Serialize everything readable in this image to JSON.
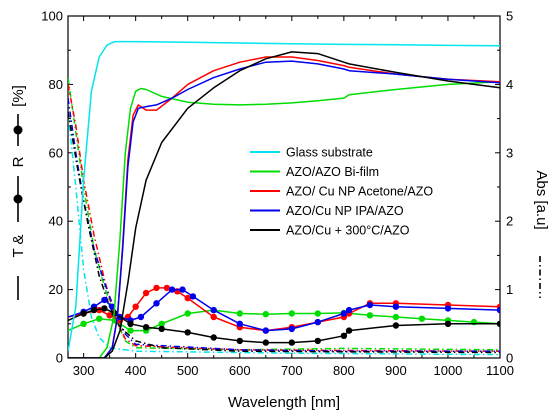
{
  "chart_data": {
    "type": "line",
    "xlabel": "Wavelength [nm]",
    "ylabel_left": "T & R [%]",
    "ylabel_left_parts": [
      "T &",
      "R",
      "[%]"
    ],
    "ylabel_right": "Abs [a.u]",
    "xlim": [
      270,
      1100
    ],
    "ylim_left": [
      0,
      100
    ],
    "ylim_right": [
      0,
      5
    ],
    "x_ticks": [
      300,
      400,
      500,
      600,
      700,
      800,
      900,
      1000,
      1100
    ],
    "y_left_ticks": [
      0,
      20,
      40,
      60,
      80,
      100
    ],
    "y_right_ticks": [
      0,
      1,
      2,
      3,
      4,
      5
    ],
    "grid": false,
    "legend_position": "center-right",
    "legend": [
      {
        "label": "Glass substrate",
        "color": "#00e5ee"
      },
      {
        "label": "AZO/AZO Bi-film",
        "color": "#00dd00"
      },
      {
        "label": "AZO/ Cu NP Acetone/AZO",
        "color": "#ff0000"
      },
      {
        "label": "AZO/Cu NP  IPA/AZO",
        "color": "#0000ee"
      },
      {
        "label": "AZO/Cu + 300°C/AZO",
        "color": "#000000"
      }
    ],
    "series": [
      {
        "name": "Glass substrate",
        "kind": "transmittance",
        "axis": "left",
        "color": "#00e5ee",
        "points": [
          [
            270,
            2
          ],
          [
            285,
            15
          ],
          [
            300,
            52
          ],
          [
            315,
            78
          ],
          [
            330,
            88
          ],
          [
            345,
            91.5
          ],
          [
            360,
            92.5
          ],
          [
            400,
            92.5
          ],
          [
            500,
            92.3
          ],
          [
            600,
            92.1
          ],
          [
            700,
            91.9
          ],
          [
            800,
            91.7
          ],
          [
            900,
            91.6
          ],
          [
            1000,
            91.4
          ],
          [
            1100,
            91.3
          ]
        ]
      },
      {
        "name": "AZO/AZO Bi-film",
        "kind": "transmittance",
        "axis": "left",
        "color": "#00dd00",
        "points": [
          [
            270,
            0
          ],
          [
            330,
            0
          ],
          [
            345,
            3
          ],
          [
            358,
            12
          ],
          [
            370,
            35
          ],
          [
            380,
            60
          ],
          [
            390,
            73
          ],
          [
            400,
            78
          ],
          [
            410,
            78.8
          ],
          [
            420,
            78.5
          ],
          [
            450,
            76.5
          ],
          [
            500,
            74.8
          ],
          [
            550,
            74.2
          ],
          [
            600,
            74
          ],
          [
            650,
            74.2
          ],
          [
            700,
            74.6
          ],
          [
            750,
            75.2
          ],
          [
            800,
            76
          ],
          [
            810,
            77
          ],
          [
            900,
            78.5
          ],
          [
            1000,
            80
          ],
          [
            1100,
            80.8
          ]
        ]
      },
      {
        "name": "AZO/ Cu NP Acetone/AZO",
        "kind": "transmittance",
        "axis": "left",
        "color": "#ff0000",
        "points": [
          [
            270,
            0
          ],
          [
            340,
            0
          ],
          [
            355,
            3
          ],
          [
            365,
            12
          ],
          [
            375,
            33
          ],
          [
            385,
            58
          ],
          [
            395,
            71
          ],
          [
            405,
            74
          ],
          [
            420,
            72.5
          ],
          [
            440,
            72.5
          ],
          [
            470,
            76
          ],
          [
            500,
            80
          ],
          [
            550,
            84
          ],
          [
            600,
            86.5
          ],
          [
            650,
            88
          ],
          [
            700,
            88
          ],
          [
            750,
            87
          ],
          [
            800,
            85.5
          ],
          [
            810,
            85
          ],
          [
            900,
            83
          ],
          [
            1000,
            81.5
          ],
          [
            1100,
            80.8
          ]
        ]
      },
      {
        "name": "AZO/Cu NP  IPA/AZO",
        "kind": "transmittance",
        "axis": "left",
        "color": "#0000ee",
        "points": [
          [
            270,
            0
          ],
          [
            340,
            0
          ],
          [
            355,
            3
          ],
          [
            365,
            12
          ],
          [
            375,
            32
          ],
          [
            385,
            56
          ],
          [
            395,
            69
          ],
          [
            405,
            73
          ],
          [
            420,
            73.5
          ],
          [
            440,
            74
          ],
          [
            470,
            76
          ],
          [
            500,
            78.5
          ],
          [
            550,
            82
          ],
          [
            600,
            84.5
          ],
          [
            650,
            86.5
          ],
          [
            700,
            86.8
          ],
          [
            750,
            86
          ],
          [
            800,
            84.5
          ],
          [
            810,
            84
          ],
          [
            900,
            83
          ],
          [
            1000,
            81.5
          ],
          [
            1100,
            80.5
          ]
        ]
      },
      {
        "name": "AZO/Cu + 300°C/AZO",
        "kind": "transmittance",
        "axis": "left",
        "color": "#000000",
        "points": [
          [
            270,
            0
          ],
          [
            340,
            0
          ],
          [
            355,
            2
          ],
          [
            370,
            8
          ],
          [
            385,
            22
          ],
          [
            400,
            38
          ],
          [
            420,
            52
          ],
          [
            450,
            63
          ],
          [
            500,
            73
          ],
          [
            550,
            79
          ],
          [
            600,
            84
          ],
          [
            650,
            87.5
          ],
          [
            700,
            89.5
          ],
          [
            750,
            89
          ],
          [
            800,
            86.5
          ],
          [
            810,
            86
          ],
          [
            900,
            83.5
          ],
          [
            1000,
            81
          ],
          [
            1100,
            79
          ]
        ]
      },
      {
        "name": "AZO/AZO Bi-film",
        "kind": "reflectance",
        "axis": "left",
        "color": "#00dd00",
        "points": [
          [
            270,
            8
          ],
          [
            300,
            10
          ],
          [
            330,
            11.5
          ],
          [
            360,
            11
          ],
          [
            390,
            8
          ],
          [
            420,
            8
          ],
          [
            450,
            10
          ],
          [
            500,
            13
          ],
          [
            550,
            14
          ],
          [
            600,
            13
          ],
          [
            650,
            12.8
          ],
          [
            700,
            13
          ],
          [
            750,
            13
          ],
          [
            800,
            13.2
          ],
          [
            850,
            12.5
          ],
          [
            900,
            12
          ],
          [
            950,
            11.5
          ],
          [
            1000,
            11
          ],
          [
            1050,
            10.5
          ],
          [
            1100,
            10
          ]
        ]
      },
      {
        "name": "AZO/ Cu NP Acetone/AZO",
        "kind": "reflectance",
        "axis": "left",
        "color": "#ff0000",
        "points": [
          [
            270,
            12
          ],
          [
            300,
            13
          ],
          [
            330,
            14
          ],
          [
            350,
            12.5
          ],
          [
            370,
            11
          ],
          [
            385,
            12
          ],
          [
            400,
            15
          ],
          [
            420,
            19
          ],
          [
            440,
            20.5
          ],
          [
            460,
            20.5
          ],
          [
            480,
            19.5
          ],
          [
            500,
            17.5
          ],
          [
            550,
            12
          ],
          [
            600,
            9
          ],
          [
            650,
            8
          ],
          [
            700,
            9
          ],
          [
            750,
            10.5
          ],
          [
            800,
            12
          ],
          [
            810,
            13
          ],
          [
            850,
            16
          ],
          [
            900,
            16
          ],
          [
            1000,
            15.5
          ],
          [
            1100,
            15
          ]
        ]
      },
      {
        "name": "AZO/Cu NP  IPA/AZO",
        "kind": "reflectance",
        "axis": "left",
        "color": "#0000ee",
        "points": [
          [
            270,
            12
          ],
          [
            300,
            13.5
          ],
          [
            320,
            15
          ],
          [
            340,
            17
          ],
          [
            355,
            15
          ],
          [
            370,
            12
          ],
          [
            390,
            11
          ],
          [
            410,
            12
          ],
          [
            440,
            16
          ],
          [
            470,
            20
          ],
          [
            490,
            20
          ],
          [
            510,
            18
          ],
          [
            550,
            14
          ],
          [
            600,
            10
          ],
          [
            650,
            8
          ],
          [
            700,
            8.5
          ],
          [
            750,
            10.5
          ],
          [
            800,
            13
          ],
          [
            810,
            14
          ],
          [
            850,
            15.5
          ],
          [
            900,
            15
          ],
          [
            1000,
            14.5
          ],
          [
            1100,
            14
          ]
        ]
      },
      {
        "name": "AZO/Cu + 300°C/AZO",
        "kind": "reflectance",
        "axis": "left",
        "color": "#000000",
        "points": [
          [
            270,
            11
          ],
          [
            300,
            13
          ],
          [
            320,
            14
          ],
          [
            340,
            14.5
          ],
          [
            360,
            13
          ],
          [
            390,
            10
          ],
          [
            420,
            9
          ],
          [
            450,
            8.5
          ],
          [
            500,
            7.5
          ],
          [
            550,
            6
          ],
          [
            600,
            5
          ],
          [
            650,
            4.5
          ],
          [
            700,
            4.5
          ],
          [
            750,
            5
          ],
          [
            800,
            6.5
          ],
          [
            810,
            8
          ],
          [
            900,
            9.5
          ],
          [
            1000,
            10
          ],
          [
            1100,
            10
          ]
        ]
      },
      {
        "name": "Glass substrate",
        "kind": "absorbance",
        "axis": "right",
        "color": "#00e5ee",
        "points": [
          [
            270,
            3.6
          ],
          [
            285,
            2.5
          ],
          [
            300,
            1.3
          ],
          [
            315,
            0.6
          ],
          [
            330,
            0.3
          ],
          [
            350,
            0.15
          ],
          [
            400,
            0.1
          ],
          [
            700,
            0.07
          ],
          [
            1100,
            0.05
          ]
        ]
      },
      {
        "name": "AZO/AZO Bi-film",
        "kind": "absorbance",
        "axis": "right",
        "color": "#00dd00",
        "points": [
          [
            270,
            4.1
          ],
          [
            285,
            3.3
          ],
          [
            300,
            2.5
          ],
          [
            320,
            1.6
          ],
          [
            340,
            1.05
          ],
          [
            360,
            0.6
          ],
          [
            380,
            0.25
          ],
          [
            400,
            0.15
          ],
          [
            600,
            0.12
          ],
          [
            800,
            0.14
          ],
          [
            1100,
            0.12
          ]
        ]
      },
      {
        "name": "AZO/ Cu NP Acetone/AZO",
        "kind": "absorbance",
        "axis": "right",
        "color": "#ff0000",
        "points": [
          [
            270,
            4.0
          ],
          [
            285,
            3.4
          ],
          [
            300,
            2.6
          ],
          [
            320,
            1.8
          ],
          [
            340,
            1.15
          ],
          [
            360,
            0.6
          ],
          [
            380,
            0.28
          ],
          [
            400,
            0.18
          ],
          [
            600,
            0.12
          ],
          [
            800,
            0.11
          ],
          [
            1100,
            0.1
          ]
        ]
      },
      {
        "name": "AZO/Cu NP  IPA/AZO",
        "kind": "absorbance",
        "axis": "right",
        "color": "#0000ee",
        "points": [
          [
            270,
            3.8
          ],
          [
            285,
            3.0
          ],
          [
            300,
            2.3
          ],
          [
            320,
            1.6
          ],
          [
            340,
            1.1
          ],
          [
            360,
            0.7
          ],
          [
            380,
            0.35
          ],
          [
            400,
            0.2
          ],
          [
            600,
            0.12
          ],
          [
            800,
            0.1
          ],
          [
            1100,
            0.1
          ]
        ]
      },
      {
        "name": "AZO/Cu + 300°C/AZO",
        "kind": "absorbance",
        "axis": "right",
        "color": "#000000",
        "points": [
          [
            270,
            3.6
          ],
          [
            290,
            2.7
          ],
          [
            310,
            1.9
          ],
          [
            330,
            1.2
          ],
          [
            350,
            0.75
          ],
          [
            370,
            0.45
          ],
          [
            400,
            0.25
          ],
          [
            450,
            0.15
          ],
          [
            600,
            0.1
          ],
          [
            800,
            0.09
          ],
          [
            1100,
            0.08
          ]
        ]
      }
    ]
  }
}
